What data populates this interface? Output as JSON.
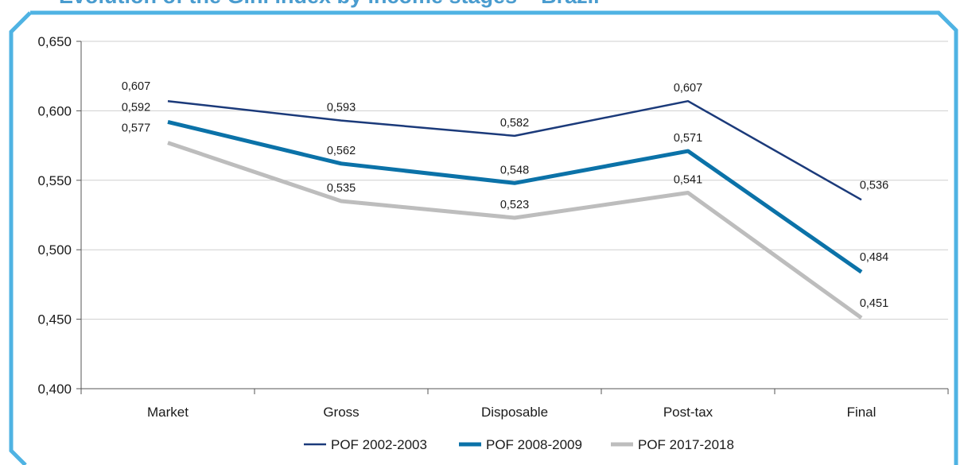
{
  "chart_data": {
    "type": "line",
    "title": "Evolution of the Gini index by income stages – Brazil",
    "categories": [
      "Market",
      "Gross",
      "Disposable",
      "Post-tax",
      "Final"
    ],
    "ylim": [
      0.4,
      0.65
    ],
    "yticks": [
      "0,400",
      "0,450",
      "0,500",
      "0,550",
      "0,600",
      "0,650"
    ],
    "ytick_values": [
      0.4,
      0.45,
      0.5,
      0.55,
      0.6,
      0.65
    ],
    "grid": true,
    "legend_position": "bottom",
    "series": [
      {
        "name": "POF 2002-2003",
        "color": "#1b3a7a",
        "values": [
          0.607,
          0.593,
          0.582,
          0.607,
          0.536
        ],
        "labels": [
          "0,607",
          "0,593",
          "0,582",
          "0,607",
          "0,536"
        ]
      },
      {
        "name": "POF 2008-2009",
        "color": "#0b72a8",
        "values": [
          0.592,
          0.562,
          0.548,
          0.571,
          0.484
        ],
        "labels": [
          "0,592",
          "0,562",
          "0,548",
          "0,571",
          "0,484"
        ]
      },
      {
        "name": "POF 2017-2018",
        "color": "#bdbdbd",
        "values": [
          0.577,
          0.535,
          0.523,
          0.541,
          0.451
        ],
        "labels": [
          "0,577",
          "0,535",
          "0,523",
          "0,541",
          "0,451"
        ]
      }
    ]
  },
  "colors": {
    "frame": "#4fb3e3",
    "title": "#4a9ccf",
    "grid": "#cfcfcf",
    "axis": "#555555"
  }
}
